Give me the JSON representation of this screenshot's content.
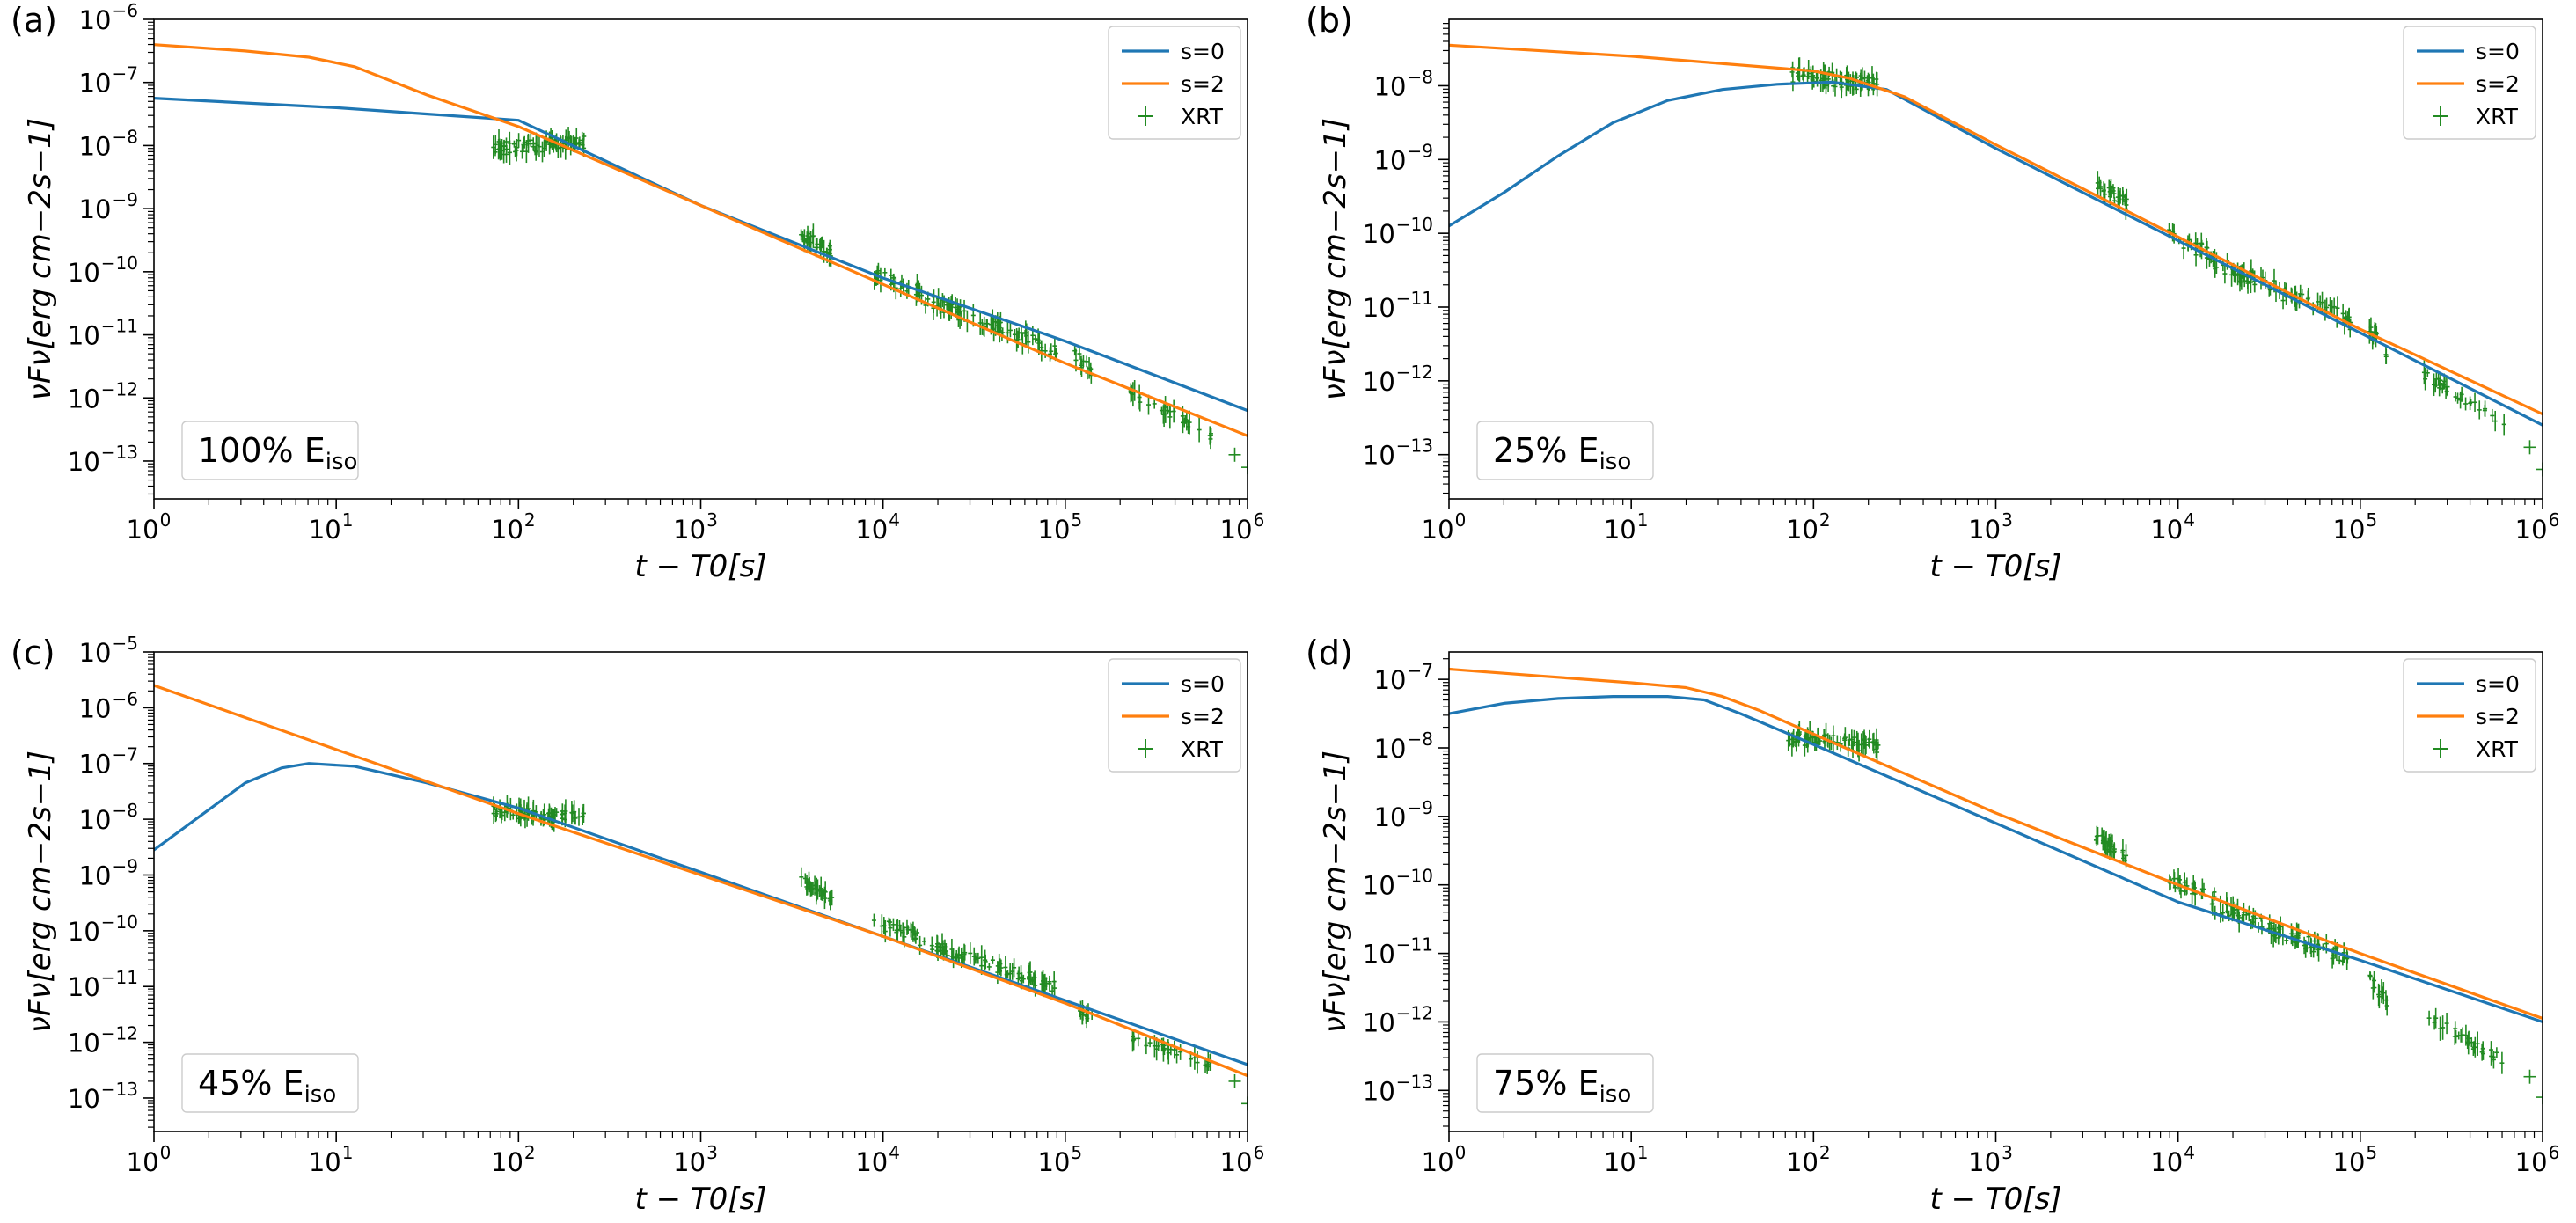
{
  "figure": {
    "description_free": true
  },
  "styles": {
    "s0_color": "#1f77b4",
    "s2_color": "#ff7f0e",
    "xrt_color": "#228b22"
  },
  "chart_data": [
    {
      "type": "line",
      "panel_label": "(a)",
      "annotation": {
        "main": "100% E",
        "sub": "iso"
      },
      "xlabel": "t − T0[s]",
      "ylabel": "νFν[erg cm−2s−1]",
      "xscale": "log",
      "yscale": "log",
      "xlim": [
        1,
        1000000
      ],
      "ylim_exp": [
        -13.6,
        -6
      ],
      "x_ticks_exp": [
        0,
        1,
        2,
        3,
        4,
        5,
        6
      ],
      "y_ticks_exp": [
        -13,
        -12,
        -11,
        -10,
        -9,
        -8,
        -7,
        -6
      ],
      "legend": [
        "s=0",
        "s=2",
        "XRT"
      ],
      "legend_position": "top-right",
      "series": [
        {
          "name": "s=0",
          "x_log": [
            0,
            1,
            1.5,
            2,
            3,
            4,
            5,
            6
          ],
          "y_log": [
            -7.25,
            -7.4,
            -7.5,
            -7.6,
            -8.95,
            -10.1,
            -11.1,
            -12.2
          ]
        },
        {
          "name": "s=2",
          "x_log": [
            0,
            0.5,
            0.85,
            1.1,
            1.5,
            2,
            3,
            4,
            5,
            6
          ],
          "y_log": [
            -6.4,
            -6.5,
            -6.6,
            -6.75,
            -7.2,
            -7.7,
            -8.95,
            -10.2,
            -11.45,
            -12.6
          ]
        }
      ],
      "xrt_clusters": [
        {
          "x_log": [
            1.86,
            2.36
          ],
          "y_log": [
            -8.05,
            -7.95
          ],
          "n": 70,
          "spread": 0.22
        },
        {
          "x_log": [
            3.55,
            3.72
          ],
          "y_log": [
            -9.4,
            -9.7
          ],
          "n": 30,
          "spread": 0.18
        },
        {
          "x_log": [
            3.95,
            4.2
          ],
          "y_log": [
            -10.05,
            -10.3
          ],
          "n": 25,
          "spread": 0.2
        },
        {
          "x_log": [
            4.2,
            4.95
          ],
          "y_log": [
            -10.4,
            -11.25
          ],
          "n": 80,
          "spread": 0.22
        },
        {
          "x_log": [
            5.05,
            5.15
          ],
          "y_log": [
            -11.3,
            -11.6
          ],
          "n": 12,
          "spread": 0.2
        },
        {
          "x_log": [
            5.35,
            5.8
          ],
          "y_log": [
            -11.9,
            -12.6
          ],
          "n": 30,
          "spread": 0.15
        }
      ],
      "xrt_points": [
        {
          "x_log": 5.93,
          "y_log": -12.9
        },
        {
          "x_log": 6.0,
          "y_log": -13.1
        }
      ]
    },
    {
      "type": "line",
      "panel_label": "(b)",
      "annotation": {
        "main": "25% E",
        "sub": "iso"
      },
      "xlabel": "t − T0[s]",
      "ylabel": "νFν[erg cm−2s−1]",
      "xscale": "log",
      "yscale": "log",
      "xlim": [
        1,
        1000000
      ],
      "ylim_exp": [
        -13.6,
        -7.1
      ],
      "x_ticks_exp": [
        0,
        1,
        2,
        3,
        4,
        5,
        6
      ],
      "y_ticks_exp": [
        -13,
        -12,
        -11,
        -10,
        -9,
        -8
      ],
      "legend": [
        "s=0",
        "s=2",
        "XRT"
      ],
      "legend_position": "top-right",
      "series": [
        {
          "name": "s=0",
          "x_log": [
            0,
            0.3,
            0.6,
            0.9,
            1.2,
            1.5,
            1.8,
            2.1,
            2.4,
            3,
            4,
            5,
            6
          ],
          "y_log": [
            -9.9,
            -9.45,
            -8.95,
            -8.5,
            -8.2,
            -8.05,
            -7.98,
            -7.95,
            -8.05,
            -8.85,
            -10.1,
            -11.35,
            -12.6
          ]
        },
        {
          "name": "s=2",
          "x_log": [
            0,
            1,
            2,
            2.2,
            2.5,
            3,
            4,
            5,
            6
          ],
          "y_log": [
            -7.45,
            -7.6,
            -7.8,
            -7.9,
            -8.15,
            -8.8,
            -10.05,
            -11.3,
            -12.45
          ]
        }
      ],
      "xrt_clusters": [
        {
          "x_log": [
            1.86,
            2.36
          ],
          "y_log": [
            -7.85,
            -7.98
          ],
          "n": 70,
          "spread": 0.2
        },
        {
          "x_log": [
            3.55,
            3.72
          ],
          "y_log": [
            -9.3,
            -9.6
          ],
          "n": 30,
          "spread": 0.18
        },
        {
          "x_log": [
            3.95,
            4.2
          ],
          "y_log": [
            -10.05,
            -10.3
          ],
          "n": 25,
          "spread": 0.2
        },
        {
          "x_log": [
            4.2,
            4.95
          ],
          "y_log": [
            -10.4,
            -11.2
          ],
          "n": 80,
          "spread": 0.22
        },
        {
          "x_log": [
            5.05,
            5.15
          ],
          "y_log": [
            -11.3,
            -11.6
          ],
          "n": 12,
          "spread": 0.2
        },
        {
          "x_log": [
            5.35,
            5.8
          ],
          "y_log": [
            -11.9,
            -12.6
          ],
          "n": 30,
          "spread": 0.15
        }
      ],
      "xrt_points": [
        {
          "x_log": 5.93,
          "y_log": -12.9
        },
        {
          "x_log": 6.0,
          "y_log": -13.2
        }
      ]
    },
    {
      "type": "line",
      "panel_label": "(c)",
      "annotation": {
        "main": "45% E",
        "sub": "iso"
      },
      "xlabel": "t − T0[s]",
      "ylabel": "νFν[erg cm−2s−1]",
      "xscale": "log",
      "yscale": "log",
      "xlim": [
        1,
        1000000
      ],
      "ylim_exp": [
        -13.6,
        -5
      ],
      "x_ticks_exp": [
        0,
        1,
        2,
        3,
        4,
        5,
        6
      ],
      "y_ticks_exp": [
        -13,
        -12,
        -11,
        -10,
        -9,
        -8,
        -7,
        -6,
        -5
      ],
      "legend": [
        "s=0",
        "s=2",
        "XRT"
      ],
      "legend_position": "top-right",
      "series": [
        {
          "name": "s=0",
          "x_log": [
            0,
            0.25,
            0.5,
            0.7,
            0.85,
            1.1,
            1.5,
            2,
            3,
            4,
            5,
            6
          ],
          "y_log": [
            -8.55,
            -7.95,
            -7.35,
            -7.08,
            -7.0,
            -7.05,
            -7.35,
            -7.8,
            -8.95,
            -10.1,
            -11.25,
            -12.4
          ]
        },
        {
          "name": "s=2",
          "x_log": [
            0,
            1,
            2,
            3,
            4,
            5,
            6
          ],
          "y_log": [
            -5.6,
            -6.75,
            -7.9,
            -9.0,
            -10.1,
            -11.3,
            -12.6
          ]
        }
      ],
      "xrt_clusters": [
        {
          "x_log": [
            1.86,
            2.36
          ],
          "y_log": [
            -7.85,
            -7.98
          ],
          "n": 70,
          "spread": 0.2
        },
        {
          "x_log": [
            3.55,
            3.72
          ],
          "y_log": [
            -9.1,
            -9.4
          ],
          "n": 30,
          "spread": 0.18
        },
        {
          "x_log": [
            3.95,
            4.2
          ],
          "y_log": [
            -9.85,
            -10.1
          ],
          "n": 25,
          "spread": 0.2
        },
        {
          "x_log": [
            4.2,
            4.95
          ],
          "y_log": [
            -10.2,
            -11.0
          ],
          "n": 80,
          "spread": 0.22
        },
        {
          "x_log": [
            5.05,
            5.15
          ],
          "y_log": [
            -11.3,
            -11.6
          ],
          "n": 12,
          "spread": 0.2
        },
        {
          "x_log": [
            5.35,
            5.8
          ],
          "y_log": [
            -11.9,
            -12.4
          ],
          "n": 30,
          "spread": 0.15
        }
      ],
      "xrt_points": [
        {
          "x_log": 5.93,
          "y_log": -12.7
        },
        {
          "x_log": 6.0,
          "y_log": -13.1
        }
      ]
    },
    {
      "type": "line",
      "panel_label": "(d)",
      "annotation": {
        "main": "75% E",
        "sub": "iso"
      },
      "xlabel": "t − T0[s]",
      "ylabel": "νFν[erg cm−2s−1]",
      "xscale": "log",
      "yscale": "log",
      "xlim": [
        1,
        1000000
      ],
      "ylim_exp": [
        -13.6,
        -6.6
      ],
      "x_ticks_exp": [
        0,
        1,
        2,
        3,
        4,
        5,
        6
      ],
      "y_ticks_exp": [
        -13,
        -12,
        -11,
        -10,
        -9,
        -8,
        -7
      ],
      "legend": [
        "s=0",
        "s=2",
        "XRT"
      ],
      "legend_position": "top-right",
      "series": [
        {
          "name": "s=0",
          "x_log": [
            0,
            0.3,
            0.6,
            0.9,
            1.2,
            1.4,
            1.6,
            2,
            3,
            4,
            5,
            6
          ],
          "y_log": [
            -7.5,
            -7.35,
            -7.28,
            -7.25,
            -7.25,
            -7.3,
            -7.5,
            -7.95,
            -9.1,
            -10.25,
            -11.1,
            -12.0
          ]
        },
        {
          "name": "s=2",
          "x_log": [
            0,
            0.5,
            1,
            1.3,
            1.5,
            1.7,
            2,
            3,
            4,
            5,
            6
          ],
          "y_log": [
            -6.85,
            -6.95,
            -7.05,
            -7.12,
            -7.25,
            -7.45,
            -7.8,
            -8.95,
            -10.0,
            -11.0,
            -11.95
          ]
        }
      ],
      "xrt_clusters": [
        {
          "x_log": [
            1.86,
            2.36
          ],
          "y_log": [
            -7.85,
            -7.98
          ],
          "n": 70,
          "spread": 0.2
        },
        {
          "x_log": [
            3.55,
            3.72
          ],
          "y_log": [
            -9.3,
            -9.6
          ],
          "n": 30,
          "spread": 0.18
        },
        {
          "x_log": [
            3.95,
            4.2
          ],
          "y_log": [
            -9.95,
            -10.2
          ],
          "n": 25,
          "spread": 0.2
        },
        {
          "x_log": [
            4.2,
            4.95
          ],
          "y_log": [
            -10.3,
            -11.1
          ],
          "n": 80,
          "spread": 0.22
        },
        {
          "x_log": [
            5.05,
            5.15
          ],
          "y_log": [
            -11.4,
            -11.7
          ],
          "n": 12,
          "spread": 0.2
        },
        {
          "x_log": [
            5.35,
            5.8
          ],
          "y_log": [
            -11.9,
            -12.6
          ],
          "n": 30,
          "spread": 0.15
        }
      ],
      "xrt_points": [
        {
          "x_log": 5.93,
          "y_log": -12.8
        },
        {
          "x_log": 6.0,
          "y_log": -13.1
        }
      ]
    }
  ]
}
